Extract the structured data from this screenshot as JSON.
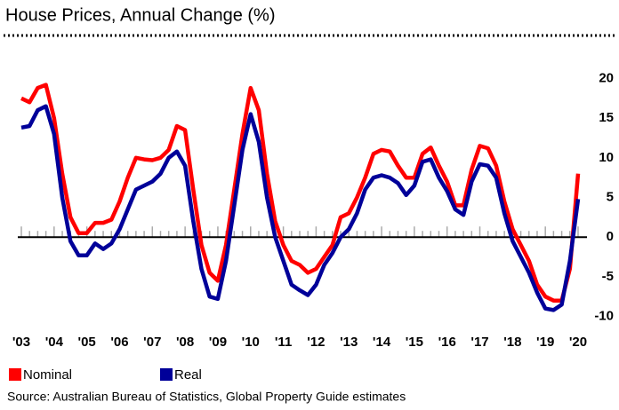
{
  "chart_data": {
    "type": "line",
    "title": "House Prices, Annual Change (%)",
    "source": "Source: Australian Bureau of Statistics, Global Property Guide estimates",
    "categories": [
      "'03",
      null,
      null,
      null,
      "'04",
      null,
      null,
      null,
      "'05",
      null,
      null,
      null,
      "'06",
      null,
      null,
      null,
      "'07",
      null,
      null,
      null,
      "'08",
      null,
      null,
      null,
      "'09",
      null,
      null,
      null,
      "'10",
      null,
      null,
      null,
      "'11",
      null,
      null,
      null,
      "'12",
      null,
      null,
      null,
      "'13",
      null,
      null,
      null,
      "'14",
      null,
      null,
      null,
      "'15",
      null,
      null,
      null,
      "'16",
      null,
      null,
      null,
      "'17",
      null,
      null,
      null,
      "'18",
      null,
      null,
      null,
      "'19",
      null,
      null,
      null,
      "'20"
    ],
    "series": [
      {
        "name": "Nominal",
        "color": "#ff0000",
        "values": [
          17.5,
          17,
          18.8,
          19.2,
          15,
          8,
          2.5,
          0.5,
          0.5,
          1.8,
          1.8,
          2.2,
          4.5,
          7.5,
          10,
          9.8,
          9.7,
          10,
          11,
          14,
          13.5,
          6,
          -1,
          -4.5,
          -5.5,
          -1,
          6,
          13,
          18.8,
          16,
          8,
          2,
          -1,
          -3,
          -3.5,
          -4.5,
          -4,
          -2.5,
          -1,
          2.5,
          3,
          5,
          7.5,
          10.5,
          11,
          10.8,
          9,
          7.5,
          7.5,
          10.5,
          11.3,
          9,
          7,
          4,
          4,
          8.5,
          11.5,
          11.2,
          9,
          4.5,
          1,
          -1,
          -3,
          -6,
          -7.5,
          -8,
          -8,
          -4,
          8
        ]
      },
      {
        "name": "Real",
        "color": "#000099",
        "values": [
          13.8,
          14,
          16,
          16.5,
          13,
          5,
          -0.5,
          -2.3,
          -2.3,
          -0.8,
          -1.5,
          -0.8,
          1,
          3.5,
          6,
          6.5,
          7,
          8,
          10,
          10.8,
          9,
          2,
          -4,
          -7.5,
          -7.8,
          -3,
          4,
          11,
          15.5,
          12,
          5,
          0,
          -3,
          -6,
          -6.7,
          -7.3,
          -6,
          -3.5,
          -2,
          0,
          1,
          3,
          6,
          7.5,
          7.8,
          7.5,
          6.8,
          5.3,
          6.5,
          9.5,
          9.8,
          7.5,
          5.8,
          3.5,
          2.8,
          7,
          9.2,
          9,
          7.5,
          3,
          -0.5,
          -2.5,
          -4.5,
          -7,
          -9,
          -9.2,
          -8.5,
          -3,
          4.8
        ]
      }
    ],
    "ylim": [
      -11.5,
      21.5
    ],
    "yticks": [
      -10,
      -5,
      0,
      5,
      10,
      15,
      20
    ],
    "y_axis_side": "right",
    "zero_line": true,
    "legend": "bottom-left"
  }
}
